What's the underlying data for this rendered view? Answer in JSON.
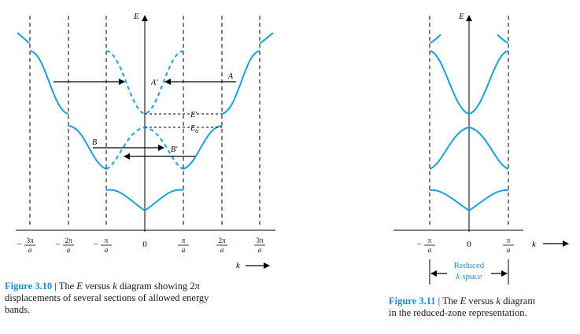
{
  "fig310": {
    "energy_axis_label": "E",
    "k_axis_label": "k",
    "tick_labels": [
      {
        "prefix": "−",
        "num": "3π",
        "den": "a"
      },
      {
        "prefix": "−",
        "num": "2π",
        "den": "a"
      },
      {
        "prefix": "−",
        "num": "π",
        "den": "a"
      },
      {
        "prefix": "",
        "num": "0",
        "den": ""
      },
      {
        "prefix": "",
        "num": "π",
        "den": "a"
      },
      {
        "prefix": "",
        "num": "2π",
        "den": "a"
      },
      {
        "prefix": "",
        "num": "3π",
        "den": "a"
      }
    ],
    "point_labels": {
      "A": "A",
      "A_prime": "A′",
      "B": "B",
      "B_prime": "B′",
      "E_prime": "E′",
      "E_o": "E",
      "E_o_sub": "o"
    },
    "caption": {
      "figure_label": "Figure 3.10",
      "separator": " | ",
      "text_parts": [
        "The ",
        "E",
        " versus ",
        "k",
        " diagram showing 2",
        "π"
      ],
      "text_rest": "displacements of several sections of allowed energy",
      "text_end": "bands."
    }
  },
  "fig311": {
    "energy_axis_label": "E",
    "k_axis_label": "k",
    "tick_labels": [
      {
        "prefix": "−",
        "num": "π",
        "den": "a"
      },
      {
        "prefix": "",
        "num": "0",
        "den": ""
      },
      {
        "prefix": "",
        "num": "π",
        "den": "a"
      }
    ],
    "reduced_label_1": "Reduced",
    "reduced_label_2": "k space",
    "caption": {
      "figure_label": "Figure 3.11",
      "separator": " | ",
      "text_parts": [
        "The ",
        "E",
        " versus ",
        "k",
        " diagram"
      ],
      "text_rest": "in the reduced-zone representation."
    }
  },
  "colors": {
    "band": "#1aa0d8",
    "caption_label": "#1a8fc8",
    "lines": "#000000"
  }
}
